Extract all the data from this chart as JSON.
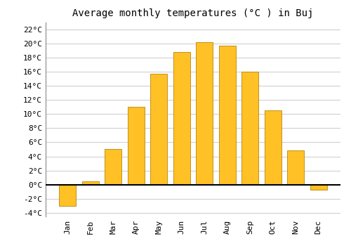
{
  "title": "Average monthly temperatures (°C ) in Buj",
  "months": [
    "Jan",
    "Feb",
    "Mar",
    "Apr",
    "May",
    "Jun",
    "Jul",
    "Aug",
    "Sep",
    "Oct",
    "Nov",
    "Dec"
  ],
  "values": [
    -3.0,
    0.5,
    5.0,
    11.0,
    15.7,
    18.8,
    20.2,
    19.7,
    16.0,
    10.5,
    4.8,
    -0.7
  ],
  "bar_color": "#FFC125",
  "bar_edge_color": "#B8860B",
  "ylim": [
    -4.5,
    23
  ],
  "yticks": [
    -4,
    -2,
    0,
    2,
    4,
    6,
    8,
    10,
    12,
    14,
    16,
    18,
    20,
    22
  ],
  "background_color": "#ffffff",
  "grid_color": "#d0d0d0",
  "title_fontsize": 10,
  "tick_fontsize": 8,
  "font_family": "monospace"
}
